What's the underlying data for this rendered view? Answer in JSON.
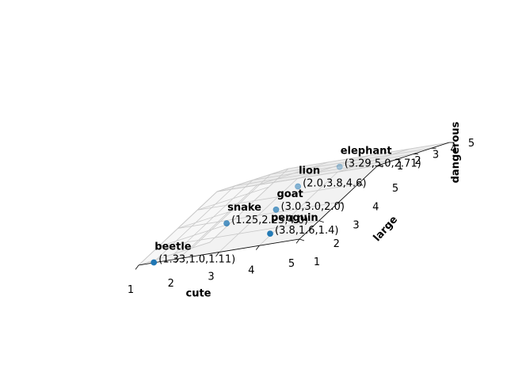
{
  "chart_data": {
    "type": "scatter3d",
    "xlabel": "cute",
    "ylabel": "large",
    "zlabel": "dangerous",
    "xlim": [
      1,
      5
    ],
    "ylim": [
      1,
      5
    ],
    "zlim": [
      1,
      5
    ],
    "xticks": [
      "1",
      "2",
      "3",
      "4",
      "5"
    ],
    "yticks": [
      "1",
      "2",
      "3",
      "4",
      "5"
    ],
    "zticks": [
      "1",
      "2",
      "3",
      "4",
      "5"
    ],
    "grid": true,
    "marker_color": "#1f77b4",
    "pane_color": "#f2f2f2",
    "points": [
      {
        "name": "lion",
        "label": "(2.0,3.8,4.6)",
        "x": 2.0,
        "y": 3.8,
        "z": 4.6
      },
      {
        "name": "snake",
        "label": "(1.25,2.25,4.0)",
        "x": 1.25,
        "y": 2.25,
        "z": 4.0
      },
      {
        "name": "elephant",
        "label": "(3.29,5.0,2.71)",
        "x": 3.29,
        "y": 5.0,
        "z": 2.71
      },
      {
        "name": "goat",
        "label": "(3.0,3.0,2.0)",
        "x": 3.0,
        "y": 3.0,
        "z": 2.0
      },
      {
        "name": "beetle",
        "label": "(1.33,1.0,1.11)",
        "x": 1.33,
        "y": 1.0,
        "z": 1.11
      },
      {
        "name": "penguin",
        "label": "(3.8,1.6,1.4)",
        "x": 3.8,
        "y": 1.6,
        "z": 1.4
      }
    ]
  }
}
